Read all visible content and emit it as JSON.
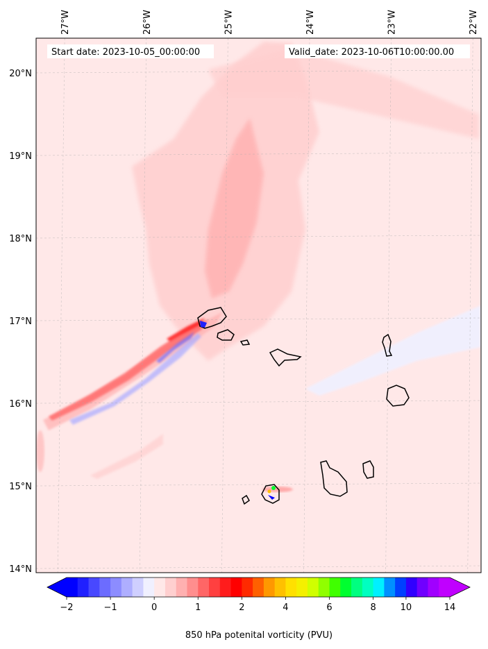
{
  "chart_data": {
    "type": "heatmap",
    "title": "",
    "start_date_text": "Start date: 2023-10-05_00:00:00",
    "valid_date_text": "Valid_date: 2023-10-06T10:00:00.00",
    "lon_ticks": [
      "27°W",
      "26°W",
      "25°W",
      "24°W",
      "23°W",
      "22°W"
    ],
    "lon_values": [
      -27,
      -26,
      -25,
      -24,
      -23,
      -22
    ],
    "lat_ticks": [
      "20°N",
      "19°N",
      "18°N",
      "17°N",
      "16°N",
      "15°N",
      "14°N"
    ],
    "lat_values": [
      20,
      19,
      18,
      17,
      16,
      15,
      14
    ],
    "lon_range": [
      -27.35,
      -21.9
    ],
    "lat_range": [
      13.95,
      20.42
    ],
    "grid": true,
    "colorbar": {
      "label": "850 hPa potenital vorticity (PVU)",
      "tick_labels": [
        "−2",
        "−1",
        "0",
        "1",
        "2",
        "4",
        "6",
        "8",
        "10",
        "14"
      ],
      "levels": [
        -2,
        -1.75,
        -1.5,
        -1.25,
        -1,
        -0.75,
        -0.5,
        -0.25,
        0,
        0.25,
        0.5,
        0.75,
        1,
        1.25,
        1.5,
        1.75,
        2,
        2.5,
        3,
        3.5,
        4,
        4.5,
        5,
        5.5,
        6,
        6.5,
        7,
        7.5,
        8,
        8.5,
        9,
        10,
        11,
        12,
        13,
        14
      ],
      "colors": [
        "#0000ff",
        "#2020ff",
        "#4848ff",
        "#6c6cff",
        "#8c8cff",
        "#aeaeff",
        "#cfcfff",
        "#f0f0ff",
        "#ffe8e8",
        "#ffcfcf",
        "#ffb0b0",
        "#ff8e8e",
        "#ff6666",
        "#ff4040",
        "#ff1c1c",
        "#ff0000",
        "#ff2a00",
        "#ff6000",
        "#ff9800",
        "#ffc000",
        "#ffe000",
        "#f4f000",
        "#d0ff00",
        "#90ff00",
        "#40ff00",
        "#00ff30",
        "#00ff80",
        "#00ffc0",
        "#00f0ff",
        "#0090ff",
        "#0040ff",
        "#3000ff",
        "#7000ff",
        "#a000ff",
        "#c000ff"
      ],
      "extend": "both"
    }
  }
}
